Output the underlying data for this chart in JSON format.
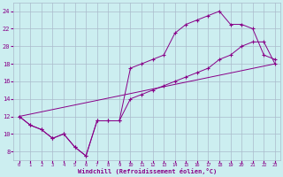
{
  "xlabel": "Windchill (Refroidissement éolien,°C)",
  "bg_color": "#cceef0",
  "line_color": "#880088",
  "grid_color": "#aabbcc",
  "xlim": [
    -0.5,
    23.5
  ],
  "ylim": [
    7,
    25
  ],
  "yticks": [
    8,
    10,
    12,
    14,
    16,
    18,
    20,
    22,
    24
  ],
  "xticks": [
    0,
    1,
    2,
    3,
    4,
    5,
    6,
    7,
    8,
    9,
    10,
    11,
    12,
    13,
    14,
    15,
    16,
    17,
    18,
    19,
    20,
    21,
    22,
    23
  ],
  "line1_x": [
    0,
    1,
    2,
    3,
    4,
    5,
    6,
    7,
    8,
    9,
    10,
    11,
    12,
    13,
    14,
    15,
    16,
    17,
    18,
    19,
    20,
    21,
    22,
    23
  ],
  "line1_y": [
    12,
    11,
    10.5,
    9.5,
    10,
    8.5,
    7.5,
    11.5,
    11.5,
    11.5,
    17.5,
    18,
    18.5,
    19,
    21.5,
    22.5,
    23,
    23.5,
    24,
    22.5,
    22.5,
    22,
    19,
    18.5
  ],
  "line2_x": [
    0,
    1,
    2,
    3,
    4,
    5,
    6,
    7,
    8,
    9,
    10,
    11,
    12,
    13,
    14,
    15,
    16,
    17,
    18,
    19,
    20,
    21,
    22,
    23
  ],
  "line2_y": [
    12,
    11,
    10.5,
    9.5,
    10,
    8.5,
    7.5,
    11.5,
    11.5,
    11.5,
    14,
    14.5,
    15,
    15.5,
    16,
    16.5,
    17,
    17.5,
    18.5,
    19,
    20,
    20.5,
    20.5,
    18
  ],
  "line3_x": [
    0,
    23
  ],
  "line3_y": [
    12,
    18
  ]
}
